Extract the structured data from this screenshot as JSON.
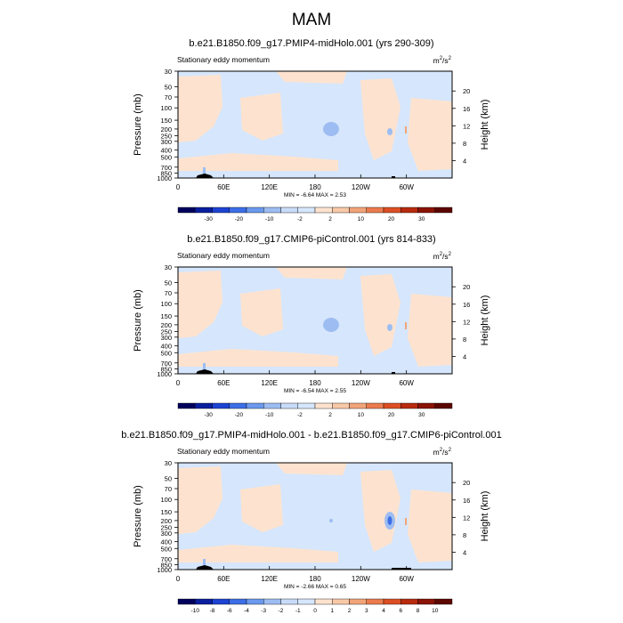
{
  "page": {
    "title": "MAM"
  },
  "chart_data": [
    {
      "type": "heatmap",
      "title": "b.e21.B1850.f09_g17.PMIP4-midHolo.001 (yrs 290-309)",
      "subtitle": "Stationary eddy momentum",
      "units": "m²/s²",
      "units_base": "m",
      "units_mid": "/s",
      "units_exp": "2",
      "ylabel": "Pressure (mb)",
      "ylabel_right": "Height (km)",
      "x_ticks": [
        "0",
        "60E",
        "120E",
        "180",
        "120W",
        "60W"
      ],
      "y_ticks": [
        "30",
        "50",
        "70",
        "100",
        "150",
        "200",
        "250",
        "300",
        "400",
        "500",
        "700",
        "850",
        "1000"
      ],
      "height_ticks": [
        "20",
        "16",
        "12",
        "8",
        "4"
      ],
      "minmax": "MIN = -6.64  MAX =   2.53",
      "colorbar_labels": [
        "-30",
        "-20",
        "-10",
        "-2",
        "2",
        "10",
        "20",
        "30"
      ],
      "colorbar_colors": [
        "#00005c",
        "#0a1f9e",
        "#1d43d2",
        "#3c6ee6",
        "#6a99ed",
        "#9dbdf2",
        "#c8dbf8",
        "#d6e6fc",
        "#fde3cf",
        "#f8c9a8",
        "#f2a479",
        "#eb7b4d",
        "#dc4f24",
        "#b82b0e",
        "#8a1306",
        "#5c0600"
      ],
      "min": -6.64,
      "max": 2.53
    },
    {
      "type": "heatmap",
      "title": "b.e21.B1850.f09_g17.CMIP6-piControl.001 (yrs 814-833)",
      "subtitle": "Stationary eddy momentum",
      "units": "m²/s²",
      "units_base": "m",
      "units_mid": "/s",
      "units_exp": "2",
      "ylabel": "Pressure (mb)",
      "ylabel_right": "Height (km)",
      "x_ticks": [
        "0",
        "60E",
        "120E",
        "180",
        "120W",
        "60W"
      ],
      "y_ticks": [
        "30",
        "50",
        "70",
        "100",
        "150",
        "200",
        "250",
        "300",
        "400",
        "500",
        "700",
        "850",
        "1000"
      ],
      "height_ticks": [
        "20",
        "16",
        "12",
        "8",
        "4"
      ],
      "minmax": "MIN = -6.54  MAX =   2.55",
      "colorbar_labels": [
        "-30",
        "-20",
        "-10",
        "-2",
        "2",
        "10",
        "20",
        "30"
      ],
      "colorbar_colors": [
        "#00005c",
        "#0a1f9e",
        "#1d43d2",
        "#3c6ee6",
        "#6a99ed",
        "#9dbdf2",
        "#c8dbf8",
        "#d6e6fc",
        "#fde3cf",
        "#f8c9a8",
        "#f2a479",
        "#eb7b4d",
        "#dc4f24",
        "#b82b0e",
        "#8a1306",
        "#5c0600"
      ],
      "min": -6.54,
      "max": 2.55
    },
    {
      "type": "heatmap",
      "title": "b.e21.B1850.f09_g17.PMIP4-midHolo.001 - b.e21.B1850.f09_g17.CMIP6-piControl.001",
      "subtitle": "Stationary eddy momentum",
      "units": "m²/s²",
      "units_base": "m",
      "units_mid": "/s",
      "units_exp": "2",
      "ylabel": "Pressure (mb)",
      "ylabel_right": "Height (km)",
      "x_ticks": [
        "0",
        "60E",
        "120E",
        "180",
        "120W",
        "60W"
      ],
      "y_ticks": [
        "30",
        "50",
        "70",
        "100",
        "150",
        "200",
        "250",
        "300",
        "400",
        "500",
        "700",
        "850",
        "1000"
      ],
      "height_ticks": [
        "20",
        "16",
        "12",
        "8",
        "4"
      ],
      "minmax": "MIN = -2.66  MAX =   0.65",
      "colorbar_labels": [
        "-10",
        "-8",
        "-6",
        "-4",
        "-3",
        "-2",
        "-1",
        "0",
        "1",
        "2",
        "3",
        "4",
        "6",
        "8",
        "10"
      ],
      "colorbar_colors": [
        "#00005c",
        "#0a1f9e",
        "#1d43d2",
        "#3c6ee6",
        "#6a99ed",
        "#9dbdf2",
        "#c8dbf8",
        "#d6e6fc",
        "#fde3cf",
        "#f8c9a8",
        "#f2a479",
        "#eb7b4d",
        "#dc4f24",
        "#b82b0e",
        "#8a1306",
        "#5c0600"
      ],
      "min": -2.66,
      "max": 0.65
    }
  ]
}
